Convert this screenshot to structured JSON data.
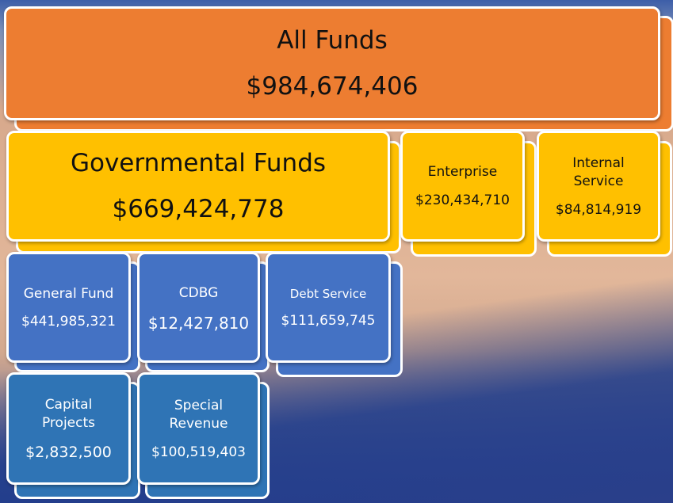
{
  "nodes": [
    {
      "label": "All Funds",
      "amount": "$984,674,406"
    },
    {
      "label": "Governmental Funds",
      "amount": "$669,424,778"
    },
    {
      "label": "Enterprise",
      "amount": "$230,434,710"
    },
    {
      "label": "Internal Service",
      "amount": "$84,814,919"
    },
    {
      "label": "General Fund",
      "amount": "$441,985,321"
    },
    {
      "label": "CDBG",
      "amount": "$12,427,810"
    },
    {
      "label": "Debt Service",
      "amount": "$111,659,745"
    },
    {
      "label": "Capital Projects",
      "amount": "$2,832,500"
    },
    {
      "label": "Special Revenue",
      "amount": "$100,519,403"
    }
  ]
}
